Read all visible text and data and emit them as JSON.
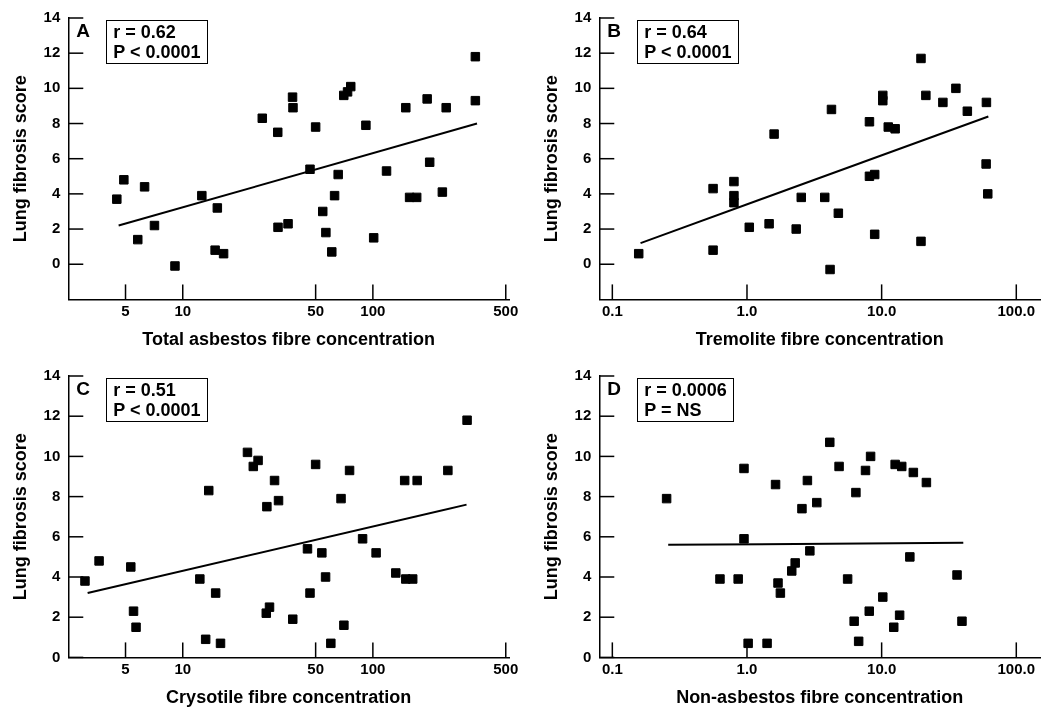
{
  "chart_data": [
    {
      "type": "scatter",
      "xlabel": "Total asbestos fibre concentration",
      "ylabel": "Lung fibrosis score",
      "log": "x",
      "marker": "square",
      "grid": false,
      "legend": false,
      "xlim": [
        2.5,
        520
      ],
      "xticks": [
        5,
        10,
        50,
        100,
        500
      ],
      "ylim": [
        -2,
        14
      ],
      "yticks": [
        0,
        2,
        4,
        6,
        8,
        10,
        12,
        14
      ],
      "annotations": [
        "A",
        "r = 0.62",
        "P < 0.0001"
      ],
      "series": [
        {
          "type": "scatter",
          "color": "#000000",
          "x": [
            4.5,
            4.9,
            5.8,
            6.3,
            7.1,
            9.1,
            12.6,
            15.2,
            14.8,
            16.4,
            26.2,
            31.6,
            31.7,
            35.8,
            37.8,
            38,
            46.7,
            50,
            54.5,
            56.6,
            60.8,
            62.9,
            65.7,
            70.3,
            73.6,
            76.5,
            91.9,
            101,
            118,
            149,
            156,
            170,
            193,
            199,
            232,
            243,
            346,
            346
          ],
          "values": [
            3.7,
            4.8,
            1.4,
            4.4,
            2.2,
            -0.1,
            3.9,
            3.2,
            0.8,
            0.6,
            8.3,
            7.5,
            2.1,
            2.3,
            9.5,
            8.9,
            5.4,
            7.8,
            3.0,
            1.8,
            0.7,
            3.9,
            5.1,
            9.6,
            9.8,
            10.1,
            7.9,
            1.5,
            5.3,
            8.9,
            3.8,
            3.8,
            9.4,
            5.8,
            4.1,
            8.9,
            11.8,
            9.3
          ]
        },
        {
          "type": "line",
          "color": "#000000",
          "marker": "none",
          "x": [
            4.6,
            353
          ],
          "values": [
            2.2,
            8.0
          ]
        }
      ]
    },
    {
      "type": "scatter",
      "xlabel": "Tremolite fibre concentration",
      "ylabel": "Lung fibrosis score",
      "log": "x",
      "marker": "square",
      "grid": false,
      "legend": false,
      "xlim": [
        0.08,
        150
      ],
      "xticks": [
        {
          "value": 0.1,
          "label": "0.1"
        },
        {
          "value": 1,
          "label": "1.0"
        },
        {
          "value": 10,
          "label": "10.0"
        },
        {
          "value": 100,
          "label": "100.0"
        }
      ],
      "ylim": [
        -2,
        14
      ],
      "yticks": [
        0,
        2,
        4,
        6,
        8,
        10,
        12,
        14
      ],
      "annotations": [
        "B",
        "r = 0.64",
        "P < 0.0001"
      ],
      "series": [
        {
          "type": "scatter",
          "color": "#000000",
          "x": [
            0.157,
            0.56,
            0.56,
            0.8,
            0.8,
            0.8,
            1.04,
            1.46,
            1.59,
            2.32,
            2.53,
            3.78,
            4.14,
            4.24,
            4.77,
            8.12,
            8.12,
            8.88,
            8.88,
            10.2,
            10.2,
            11.2,
            12.6,
            19.6,
            19.6,
            21.3,
            28.5,
            35.6,
            43.3,
            60,
            59.7,
            61.4
          ],
          "values": [
            0.6,
            4.3,
            0.8,
            4.7,
            3.9,
            3.5,
            2.1,
            2.3,
            7.4,
            2.0,
            3.8,
            3.8,
            -0.3,
            8.8,
            2.9,
            8.1,
            5.0,
            5.1,
            1.7,
            9.6,
            9.3,
            7.8,
            7.7,
            11.7,
            1.3,
            9.6,
            9.2,
            10.0,
            8.7,
            9.2,
            5.7,
            4.0
          ]
        },
        {
          "type": "line",
          "color": "#000000",
          "marker": "none",
          "x": [
            0.162,
            62
          ],
          "values": [
            1.2,
            8.4
          ]
        }
      ]
    },
    {
      "type": "scatter",
      "xlabel": "Crysotile fibre concentration",
      "ylabel": "Lung fibrosis score",
      "log": "x",
      "marker": "square",
      "grid": false,
      "legend": false,
      "xlim": [
        2.5,
        520
      ],
      "xticks": [
        5,
        10,
        50,
        100,
        500
      ],
      "ylim": [
        0,
        14
      ],
      "yticks": [
        0,
        2,
        4,
        6,
        8,
        10,
        12,
        14
      ],
      "annotations": [
        "C",
        "r = 0.51",
        "P < 0.0001"
      ],
      "series": [
        {
          "type": "scatter",
          "color": "#000000",
          "x": [
            3.06,
            3.63,
            5.33,
            5.51,
            5.68,
            12.3,
            13.2,
            13.7,
            14.9,
            15.8,
            21.9,
            23.5,
            24.9,
            27.5,
            28.6,
            27.7,
            30.4,
            31.9,
            37.9,
            45.3,
            46.7,
            50,
            53.9,
            56.4,
            60.1,
            68,
            70.4,
            75.4,
            88.3,
            104,
            132,
            147,
            149,
            162,
            171,
            248,
            313
          ],
          "values": [
            3.8,
            4.8,
            4.5,
            2.3,
            1.5,
            3.9,
            0.9,
            8.3,
            3.2,
            0.7,
            10.2,
            9.5,
            9.8,
            2.2,
            2.5,
            7.5,
            8.8,
            7.8,
            1.9,
            5.4,
            3.2,
            9.6,
            5.2,
            4.0,
            0.7,
            7.9,
            1.6,
            9.3,
            5.9,
            5.2,
            4.2,
            8.8,
            3.9,
            3.9,
            8.8,
            9.3,
            11.8
          ]
        },
        {
          "type": "line",
          "color": "#000000",
          "marker": "none",
          "x": [
            3.16,
            311
          ],
          "values": [
            3.2,
            7.6
          ]
        }
      ]
    },
    {
      "type": "scatter",
      "xlabel": "Non-asbestos fibre concentration",
      "ylabel": "Lung fibrosis score",
      "log": "x",
      "marker": "square",
      "grid": false,
      "legend": false,
      "xlim": [
        0.08,
        150
      ],
      "xticks": [
        {
          "value": 0.1,
          "label": "0.1"
        },
        {
          "value": 1,
          "label": "1.0"
        },
        {
          "value": 10,
          "label": "10.0"
        },
        {
          "value": 100,
          "label": "100.0"
        }
      ],
      "ylim": [
        0,
        14
      ],
      "yticks": [
        0,
        2,
        4,
        6,
        8,
        10,
        12,
        14
      ],
      "annotations": [
        "D",
        "r = 0.0006",
        "P = NS"
      ],
      "series": [
        {
          "type": "scatter",
          "color": "#000000",
          "x": [
            0.253,
            0.63,
            0.86,
            0.95,
            0.95,
            1.02,
            1.41,
            1.63,
            1.7,
            1.77,
            2.15,
            2.28,
            2.56,
            2.81,
            2.93,
            3.3,
            4.12,
            4.83,
            5.59,
            6.25,
            6.44,
            6.75,
            7.59,
            8.09,
            8.28,
            10.2,
            12.3,
            12.6,
            14.1,
            13.6,
            16.2,
            17.2,
            21.5,
            36.3,
            39.5
          ],
          "values": [
            7.9,
            3.9,
            3.9,
            9.4,
            5.9,
            0.7,
            0.7,
            8.6,
            3.7,
            3.2,
            4.3,
            4.7,
            7.4,
            8.8,
            5.3,
            7.7,
            10.7,
            9.5,
            3.9,
            1.8,
            8.2,
            0.8,
            9.3,
            2.3,
            10.0,
            3.0,
            1.5,
            9.6,
            9.5,
            2.1,
            5.0,
            9.2,
            8.7,
            4.1,
            1.8
          ]
        },
        {
          "type": "line",
          "color": "#000000",
          "marker": "none",
          "x": [
            0.26,
            40.4
          ],
          "values": [
            5.6,
            5.7
          ]
        }
      ]
    }
  ]
}
